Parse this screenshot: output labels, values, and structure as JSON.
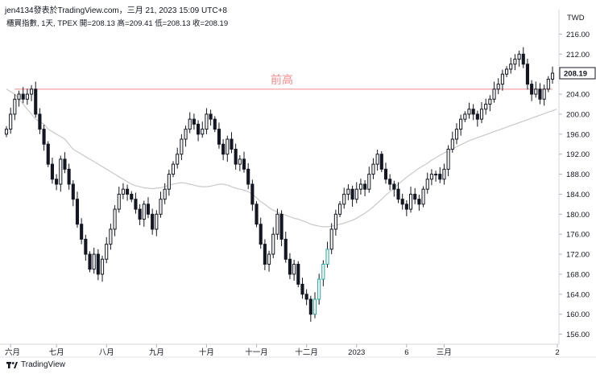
{
  "header": {
    "text": "jen4134發表於TradingView.com，三月 21, 2023 15:09 UTC+8"
  },
  "legend": {
    "text": "櫃買指數, 1天, TPEX  開=208.13  高=209.41  低=208.13  收=208.19"
  },
  "currency": "TWD",
  "brand": {
    "name": "TradingView",
    "logo_icon": "tradingview-logo-icon"
  },
  "colors": {
    "up": "#131722",
    "down": "#131722",
    "ma": "#c9c9c9",
    "annotation": "#f28b8b",
    "last_price_bg": "#ffffff",
    "green_highlight": "#26a69a"
  },
  "chart_data": {
    "type": "candlestick",
    "ylim": [
      154,
      218
    ],
    "y_ticks": [
      156,
      160,
      164,
      168,
      172,
      176,
      180,
      184,
      188,
      192,
      196,
      200,
      204,
      208,
      212,
      216
    ],
    "last_price": "208.19",
    "x_ticks": [
      "六月",
      "七月",
      "八月",
      "九月",
      "十月",
      "十一月",
      "十二月",
      "2023",
      "6",
      "三月",
      "2"
    ],
    "annotation": {
      "label": "前高",
      "y": 205.0
    },
    "closes": [
      197,
      200,
      203,
      204,
      203,
      204,
      205,
      200,
      197,
      194,
      190,
      187,
      186,
      191,
      189,
      186,
      183,
      178,
      175,
      172,
      169,
      172,
      168,
      171,
      174,
      177,
      181,
      184,
      185,
      184,
      183,
      181,
      179,
      182,
      180,
      177,
      180,
      183,
      185,
      188,
      190,
      192,
      195,
      197,
      199,
      198,
      196,
      197,
      200,
      199,
      197,
      194,
      192,
      195,
      193,
      190,
      191,
      189,
      186,
      182,
      178,
      174,
      170,
      172,
      176,
      180,
      175,
      171,
      168,
      170,
      166,
      164,
      163,
      160,
      163,
      167,
      170,
      173,
      177,
      180,
      182,
      184,
      185,
      183,
      185,
      186,
      185,
      188,
      190,
      192,
      189,
      187,
      186,
      185,
      183,
      182,
      181,
      184,
      183,
      182,
      185,
      187,
      188,
      188,
      187,
      189,
      193,
      195,
      197,
      199,
      200,
      201,
      200,
      199,
      201,
      202,
      203,
      205,
      206,
      208,
      209,
      210,
      211,
      212,
      210,
      206,
      204,
      205,
      203,
      205,
      207,
      208.19
    ],
    "ma": [
      205,
      204.5,
      204,
      203,
      202,
      201,
      200,
      199,
      198.5,
      198,
      197,
      196.5,
      196,
      195.5,
      195,
      194,
      193,
      192.5,
      192,
      191.5,
      191,
      190.5,
      190,
      189.5,
      189,
      188.5,
      188,
      187.5,
      187,
      186.5,
      186,
      185.7,
      185.5,
      185.3,
      185.2,
      185.1,
      185.2,
      185.3,
      185.5,
      185.8,
      186,
      186.2,
      186.3,
      186.2,
      186,
      185.8,
      185.6,
      185.5,
      185.5,
      185.6,
      185.8,
      186,
      186,
      185.8,
      185.5,
      185.2,
      185,
      184.8,
      184.5,
      184,
      183.3,
      182.5,
      182,
      181.3,
      180.8,
      180.4,
      180,
      179.8,
      179.5,
      179.2,
      179,
      178.7,
      178.4,
      178,
      177.8,
      177.6,
      177.5,
      177.5,
      177.6,
      177.8,
      178,
      178.2,
      178.5,
      178.8,
      179.2,
      179.7,
      180.2,
      180.8,
      181.5,
      182.2,
      183,
      183.8,
      184.5,
      185.2,
      186,
      186.7,
      187.4,
      188,
      188.6,
      189.2,
      189.7,
      190.2,
      190.8,
      191.3,
      191.8,
      192.2,
      192.7,
      193.1,
      193.5,
      193.9,
      194.3,
      194.7,
      195,
      195.3,
      195.6,
      195.9,
      196.2,
      196.5,
      196.8,
      197.1,
      197.4,
      197.7,
      198,
      198.3,
      198.6,
      198.9,
      199.2,
      199.5,
      199.8,
      200.1,
      200.4,
      200.7,
      201
    ]
  }
}
